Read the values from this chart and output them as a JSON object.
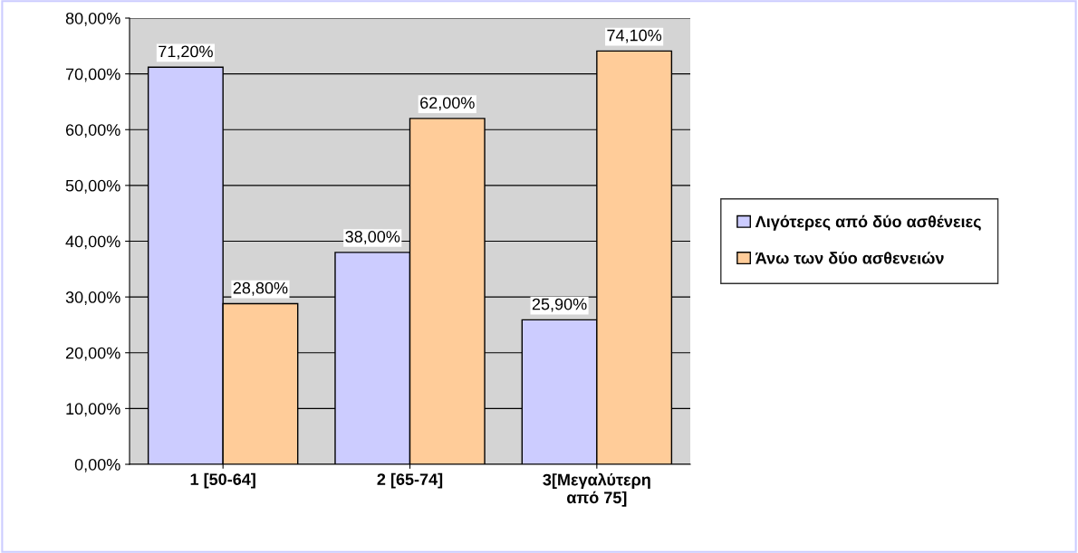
{
  "chart_data": {
    "type": "bar",
    "categories": [
      "1 [50-64]",
      "2 [65-74]",
      "3[Μεγαλύτερη\nαπό 75]"
    ],
    "series": [
      {
        "name": "Λιγότερες από δύο ασθένειες",
        "color": "#ccccff",
        "values": [
          71.2,
          38.0,
          25.9
        ],
        "value_labels": [
          "71,20%",
          "38,00%",
          "25,90%"
        ]
      },
      {
        "name": "Άνω των δύο ασθενειών",
        "color": "#ffcc99",
        "values": [
          28.8,
          62.0,
          74.1
        ],
        "value_labels": [
          "28,80%",
          "62,00%",
          "74,10%"
        ]
      }
    ],
    "ylim": [
      0,
      80
    ],
    "yticks": [
      {
        "value": 0,
        "label": "0,00%"
      },
      {
        "value": 10,
        "label": "10,00%"
      },
      {
        "value": 20,
        "label": "20,00%"
      },
      {
        "value": 30,
        "label": "30,00%"
      },
      {
        "value": 40,
        "label": "40,00%"
      },
      {
        "value": 50,
        "label": "50,00%"
      },
      {
        "value": 60,
        "label": "60,00%"
      },
      {
        "value": 70,
        "label": "70,00%"
      },
      {
        "value": 80,
        "label": "80,00%"
      }
    ],
    "grid": "y",
    "legend": "right"
  }
}
